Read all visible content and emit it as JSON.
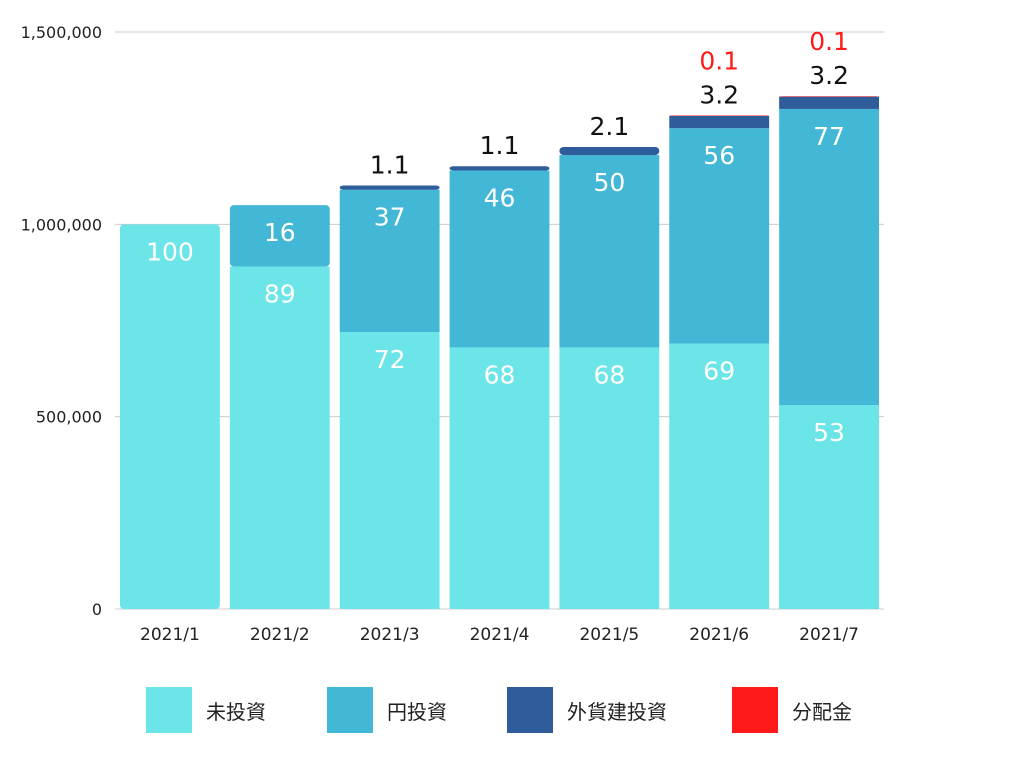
{
  "chart_data": {
    "type": "bar",
    "stacked": true,
    "title": "",
    "xlabel": "",
    "ylabel": "",
    "categories": [
      "2021/1",
      "2021/2",
      "2021/3",
      "2021/4",
      "2021/5",
      "2021/6",
      "2021/7"
    ],
    "ylim": [
      0,
      1500000
    ],
    "yticks": [
      0,
      500000,
      1000000,
      1500000
    ],
    "ytick_labels": [
      "0",
      "500,000",
      "1,000,000",
      "1,500,000"
    ],
    "grid": true,
    "legend_position": "bottom",
    "series": [
      {
        "name": "未投資",
        "color": "#6ce5e8",
        "values": [
          1000000,
          890000,
          720000,
          680000,
          680000,
          690000,
          530000
        ],
        "labels": [
          "100",
          "89",
          "72",
          "68",
          "68",
          "69",
          "53"
        ]
      },
      {
        "name": "円投資",
        "color": "#43b7d6",
        "values": [
          0,
          160000,
          370000,
          460000,
          500000,
          560000,
          770000
        ],
        "labels": [
          "",
          "16",
          "37",
          "46",
          "50",
          "56",
          "77"
        ]
      },
      {
        "name": "外貨建投資",
        "color": "#2f5c9a",
        "values": [
          0,
          0,
          11000,
          11000,
          21000,
          32000,
          32000
        ],
        "labels": [
          "",
          "",
          "1.1",
          "1.1",
          "2.1",
          "3.2",
          "3.2"
        ]
      },
      {
        "name": "分配金",
        "color": "#ff1a1a",
        "values": [
          0,
          0,
          0,
          0,
          0,
          1000,
          1000
        ],
        "labels": [
          "",
          "",
          "",
          "",
          "",
          "0.1",
          "0.1"
        ]
      }
    ]
  }
}
